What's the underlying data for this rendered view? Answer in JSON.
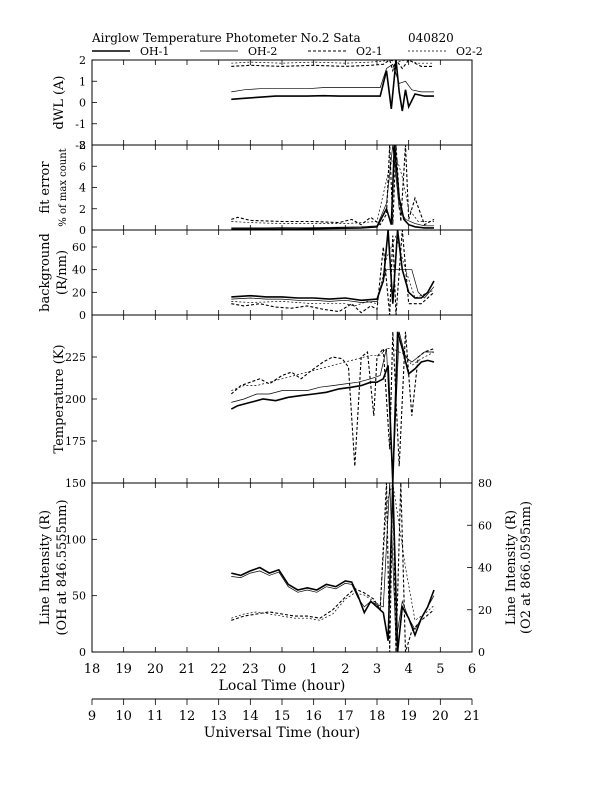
{
  "title": "Airglow Temperature Photometer No.2  Sata",
  "date_code": "040820",
  "legend": [
    {
      "name": "OH-1",
      "style": "solid-thick"
    },
    {
      "name": "OH-2",
      "style": "solid-thin"
    },
    {
      "name": "O2-1",
      "style": "dashed-thick"
    },
    {
      "name": "O2-2",
      "style": "dashed-thin"
    }
  ],
  "axes": {
    "local_time": {
      "label": "Local Time (hour)",
      "ticks": [
        "18",
        "19",
        "20",
        "21",
        "22",
        "23",
        "0",
        "1",
        "2",
        "3",
        "4",
        "5",
        "6"
      ]
    },
    "universal_time": {
      "label": "Universal Time (hour)",
      "ticks": [
        "9",
        "10",
        "11",
        "12",
        "13",
        "14",
        "15",
        "16",
        "17",
        "18",
        "19",
        "20",
        "21"
      ]
    }
  },
  "chart_data": [
    {
      "type": "line",
      "panel": "dwl",
      "ylabel": "dWL (A)",
      "ylim": [
        -2,
        2
      ],
      "ytick_labels": [
        "2",
        "1",
        "0",
        "-1",
        "-2"
      ],
      "x_unit": "local hour (18 to 30)",
      "series": [
        {
          "name": "OH-1",
          "x": [
            22.4,
            22.8,
            23.3,
            23.8,
            24.3,
            24.8,
            25.3,
            25.8,
            26.3,
            26.8,
            27.1,
            27.3,
            27.45,
            27.6,
            27.7,
            27.8,
            27.9,
            28.0,
            28.2,
            28.5,
            28.8
          ],
          "y": [
            0.15,
            0.2,
            0.25,
            0.3,
            0.3,
            0.3,
            0.32,
            0.3,
            0.3,
            0.3,
            0.3,
            1.5,
            -0.3,
            2.0,
            0.5,
            -0.4,
            0.6,
            -0.2,
            0.4,
            0.3,
            0.3
          ]
        },
        {
          "name": "OH-2",
          "x": [
            22.4,
            22.8,
            23.3,
            23.8,
            24.3,
            24.8,
            25.3,
            25.8,
            26.3,
            26.8,
            27.1,
            27.3,
            27.5,
            27.7,
            27.9,
            28.1,
            28.4,
            28.8
          ],
          "y": [
            0.5,
            0.6,
            0.65,
            0.65,
            0.65,
            0.65,
            0.7,
            0.7,
            0.7,
            0.7,
            0.7,
            1.6,
            1.8,
            0.9,
            1.0,
            0.6,
            0.5,
            0.5
          ]
        },
        {
          "name": "O2-1",
          "x": [
            22.4,
            23.0,
            24.0,
            25.0,
            26.0,
            26.8,
            27.2,
            27.4,
            27.5,
            27.6,
            27.8,
            28.0,
            28.4,
            28.8
          ],
          "y": [
            1.7,
            1.75,
            1.7,
            1.75,
            1.7,
            1.75,
            1.8,
            2.0,
            1.5,
            2.0,
            1.6,
            2.0,
            1.7,
            1.7
          ]
        },
        {
          "name": "O2-2",
          "x": [
            22.4,
            23.0,
            24.0,
            25.0,
            26.0,
            26.8,
            27.2,
            27.4,
            27.6,
            27.9,
            28.3,
            28.8
          ],
          "y": [
            1.85,
            1.9,
            1.85,
            1.9,
            1.85,
            1.9,
            1.95,
            2.0,
            1.9,
            2.0,
            1.85,
            1.85
          ]
        }
      ]
    },
    {
      "type": "line",
      "panel": "fit_error",
      "ylabel": "fit error",
      "ylabel2": "% of max count",
      "ylim": [
        0,
        8
      ],
      "ytick_labels": [
        "8",
        "6",
        "4",
        "2",
        "0"
      ],
      "series": [
        {
          "name": "OH-1",
          "x": [
            22.4,
            23.5,
            24.5,
            25.5,
            26.5,
            27.0,
            27.3,
            27.45,
            27.55,
            27.7,
            27.85,
            28.0,
            28.2,
            28.5,
            28.8
          ],
          "y": [
            0.1,
            0.1,
            0.1,
            0.15,
            0.2,
            0.3,
            2.0,
            0.5,
            8.0,
            3.0,
            1.0,
            0.5,
            0.3,
            0.2,
            0.2
          ]
        },
        {
          "name": "OH-2",
          "x": [
            22.4,
            23.5,
            24.5,
            25.5,
            26.5,
            27.0,
            27.3,
            27.5,
            27.7,
            27.9,
            28.2,
            28.5,
            28.8
          ],
          "y": [
            0.2,
            0.2,
            0.25,
            0.25,
            0.3,
            0.4,
            2.5,
            8.0,
            2.0,
            1.0,
            0.6,
            0.4,
            0.4
          ]
        },
        {
          "name": "O2-1",
          "x": [
            22.4,
            22.6,
            23.0,
            24.0,
            25.0,
            25.8,
            26.2,
            26.5,
            26.8,
            27.1,
            27.3,
            27.4,
            27.5,
            27.6,
            27.75,
            27.9,
            28.0,
            28.2,
            28.5,
            28.8
          ],
          "y": [
            1.0,
            1.2,
            0.9,
            0.8,
            0.8,
            0.7,
            1.0,
            0.5,
            1.2,
            0.5,
            1.5,
            8.0,
            0.5,
            8.0,
            0.8,
            8.0,
            1.0,
            3.0,
            0.5,
            1.0
          ]
        },
        {
          "name": "O2-2",
          "x": [
            22.4,
            23.0,
            24.0,
            25.0,
            26.0,
            26.5,
            27.0,
            27.4,
            27.6,
            27.8,
            28.0,
            28.3,
            28.8
          ],
          "y": [
            0.8,
            0.7,
            0.6,
            0.6,
            0.6,
            0.7,
            0.8,
            6.0,
            7.0,
            5.0,
            2.0,
            0.8,
            0.8
          ]
        }
      ]
    },
    {
      "type": "line",
      "panel": "background",
      "ylabel": "background",
      "ylabel2": "(R/nm)",
      "ylim": [
        0,
        75
      ],
      "ytick_labels": [
        "60",
        "40",
        "20",
        "0"
      ],
      "series": [
        {
          "name": "OH-1",
          "x": [
            22.4,
            23.0,
            23.5,
            24.0,
            24.5,
            25.0,
            25.5,
            26.0,
            26.5,
            27.0,
            27.2,
            27.35,
            27.5,
            27.65,
            27.8,
            28.0,
            28.2,
            28.4,
            28.6,
            28.8
          ],
          "y": [
            16,
            17,
            16,
            16,
            15,
            15,
            14,
            15,
            13,
            14,
            30,
            75,
            10,
            75,
            40,
            20,
            15,
            15,
            20,
            30
          ]
        },
        {
          "name": "OH-2",
          "x": [
            22.4,
            23.0,
            23.5,
            24.0,
            24.5,
            25.0,
            25.5,
            26.0,
            26.5,
            27.0,
            27.3,
            27.5,
            27.7,
            27.9,
            28.1,
            28.3,
            28.5,
            28.8
          ],
          "y": [
            14,
            15,
            14,
            14,
            13,
            13,
            12,
            13,
            11,
            12,
            40,
            40,
            40,
            40,
            40,
            20,
            15,
            25
          ]
        },
        {
          "name": "O2-1",
          "x": [
            22.4,
            22.8,
            23.3,
            23.8,
            24.3,
            24.8,
            25.3,
            25.8,
            26.2,
            26.5,
            26.8,
            27.0,
            27.2,
            27.4,
            27.5,
            27.6,
            27.8,
            28.0,
            28.4,
            28.8
          ],
          "y": [
            10,
            8,
            10,
            7,
            6,
            8,
            5,
            3,
            10,
            2,
            8,
            5,
            60,
            0,
            70,
            0,
            75,
            10,
            10,
            20
          ]
        },
        {
          "name": "O2-2",
          "x": [
            22.4,
            23.0,
            24.0,
            25.0,
            26.0,
            26.3,
            26.7,
            27.0,
            27.3,
            27.6,
            27.9,
            28.2,
            28.8
          ],
          "y": [
            12,
            11,
            12,
            10,
            10,
            8,
            12,
            10,
            50,
            70,
            40,
            15,
            22
          ]
        }
      ]
    },
    {
      "type": "line",
      "panel": "temperature",
      "ylabel": "Temperature (K)",
      "ylim": [
        150,
        250
      ],
      "ytick_labels": [
        "225",
        "200",
        "175"
      ],
      "series": [
        {
          "name": "OH-1",
          "x": [
            22.4,
            22.6,
            23.0,
            23.4,
            23.8,
            24.2,
            24.6,
            25.0,
            25.4,
            25.8,
            26.2,
            26.5,
            26.8,
            27.0,
            27.2,
            27.35,
            27.5,
            27.65,
            27.8,
            28.0,
            28.2,
            28.4,
            28.6,
            28.8
          ],
          "y": [
            194,
            196,
            198,
            200,
            199,
            201,
            202,
            203,
            204,
            206,
            207,
            208,
            210,
            210,
            212,
            220,
            150,
            240,
            230,
            215,
            218,
            222,
            223,
            222
          ]
        },
        {
          "name": "OH-2",
          "x": [
            22.4,
            22.8,
            23.2,
            23.6,
            24.0,
            24.4,
            24.8,
            25.2,
            25.6,
            26.0,
            26.4,
            26.8,
            27.1,
            27.3,
            27.5,
            27.7,
            27.9,
            28.1,
            28.3,
            28.5,
            28.8
          ],
          "y": [
            198,
            200,
            203,
            203,
            205,
            205,
            205,
            207,
            208,
            209,
            210,
            212,
            214,
            230,
            150,
            240,
            225,
            222,
            225,
            228,
            228
          ]
        },
        {
          "name": "O2-1",
          "x": [
            22.4,
            22.7,
            23.0,
            23.3,
            23.6,
            24.0,
            24.3,
            24.6,
            25.0,
            25.3,
            25.6,
            25.9,
            26.1,
            26.3,
            26.5,
            26.7,
            26.9,
            27.0,
            27.2,
            27.4,
            27.5,
            27.7,
            27.9,
            28.1,
            28.3,
            28.5,
            28.8
          ],
          "y": [
            203,
            208,
            210,
            212,
            209,
            214,
            216,
            212,
            218,
            222,
            225,
            224,
            219,
            160,
            225,
            228,
            190,
            225,
            230,
            170,
            240,
            160,
            240,
            190,
            225,
            228,
            230
          ]
        },
        {
          "name": "O2-2",
          "x": [
            22.4,
            22.8,
            23.2,
            23.6,
            24.0,
            24.4,
            24.8,
            25.2,
            25.6,
            26.0,
            26.4,
            26.8,
            27.1,
            27.3,
            27.5,
            27.7,
            27.9,
            28.1,
            28.4,
            28.8
          ],
          "y": [
            205,
            208,
            208,
            210,
            212,
            214,
            216,
            218,
            220,
            222,
            224,
            226,
            226,
            230,
            230,
            228,
            226,
            220,
            224,
            228
          ]
        }
      ]
    },
    {
      "type": "line",
      "panel": "line_intensity",
      "ylabel": "Line Intensity (R)",
      "ylabel2": "(OH at 846.5555nm)",
      "ylim": [
        0,
        150
      ],
      "ytick_labels": [
        "150",
        "100",
        "50",
        "0"
      ],
      "ylabel_right": "Line Intensity (R)",
      "ylabel_right2": "(O2 at 866.0595nm)",
      "ylim_right": [
        0,
        80
      ],
      "ytick_labels_right": [
        "80",
        "60",
        "40",
        "20",
        "0"
      ],
      "series": [
        {
          "name": "OH-1",
          "axis": "left",
          "x": [
            22.4,
            22.7,
            23.0,
            23.3,
            23.6,
            23.9,
            24.2,
            24.5,
            24.8,
            25.1,
            25.4,
            25.7,
            26.0,
            26.2,
            26.4,
            26.6,
            26.8,
            27.0,
            27.2,
            27.35,
            27.5,
            27.65,
            27.8,
            28.0,
            28.2,
            28.4,
            28.6,
            28.8
          ],
          "y": [
            70,
            68,
            72,
            75,
            70,
            73,
            60,
            55,
            57,
            55,
            60,
            58,
            63,
            62,
            50,
            35,
            45,
            40,
            35,
            10,
            150,
            0,
            40,
            30,
            15,
            30,
            40,
            55
          ]
        },
        {
          "name": "OH-2",
          "axis": "left",
          "x": [
            22.4,
            22.7,
            23.0,
            23.3,
            23.6,
            23.9,
            24.2,
            24.5,
            24.8,
            25.1,
            25.4,
            25.7,
            26.0,
            26.2,
            26.4,
            26.6,
            26.8,
            27.0,
            27.2,
            27.4,
            27.6,
            27.8,
            28.0,
            28.2,
            28.5,
            28.8
          ],
          "y": [
            67,
            66,
            70,
            72,
            68,
            71,
            58,
            53,
            55,
            53,
            58,
            56,
            61,
            60,
            48,
            40,
            45,
            42,
            40,
            150,
            10,
            45,
            30,
            20,
            35,
            50
          ]
        },
        {
          "name": "O2-1",
          "axis": "right",
          "x": [
            22.4,
            22.8,
            23.2,
            23.6,
            24.0,
            24.4,
            24.8,
            25.2,
            25.6,
            26.0,
            26.3,
            26.6,
            26.9,
            27.1,
            27.3,
            27.4,
            27.5,
            27.6,
            27.75,
            27.9,
            28.1,
            28.4,
            28.8
          ],
          "y": [
            15,
            17,
            18,
            19,
            18,
            17,
            17,
            16,
            20,
            26,
            30,
            28,
            25,
            20,
            80,
            0,
            80,
            0,
            80,
            0,
            10,
            15,
            20
          ]
        },
        {
          "name": "O2-2",
          "axis": "right",
          "x": [
            22.4,
            22.8,
            23.2,
            23.6,
            24.0,
            24.4,
            24.8,
            25.2,
            25.6,
            26.0,
            26.3,
            26.6,
            26.9,
            27.1,
            27.3,
            27.5,
            27.7,
            27.9,
            28.2,
            28.5,
            28.8
          ],
          "y": [
            16,
            18,
            19,
            18,
            17,
            16,
            16,
            15,
            18,
            25,
            28,
            27,
            24,
            22,
            70,
            80,
            60,
            40,
            15,
            18,
            22
          ]
        }
      ]
    }
  ]
}
